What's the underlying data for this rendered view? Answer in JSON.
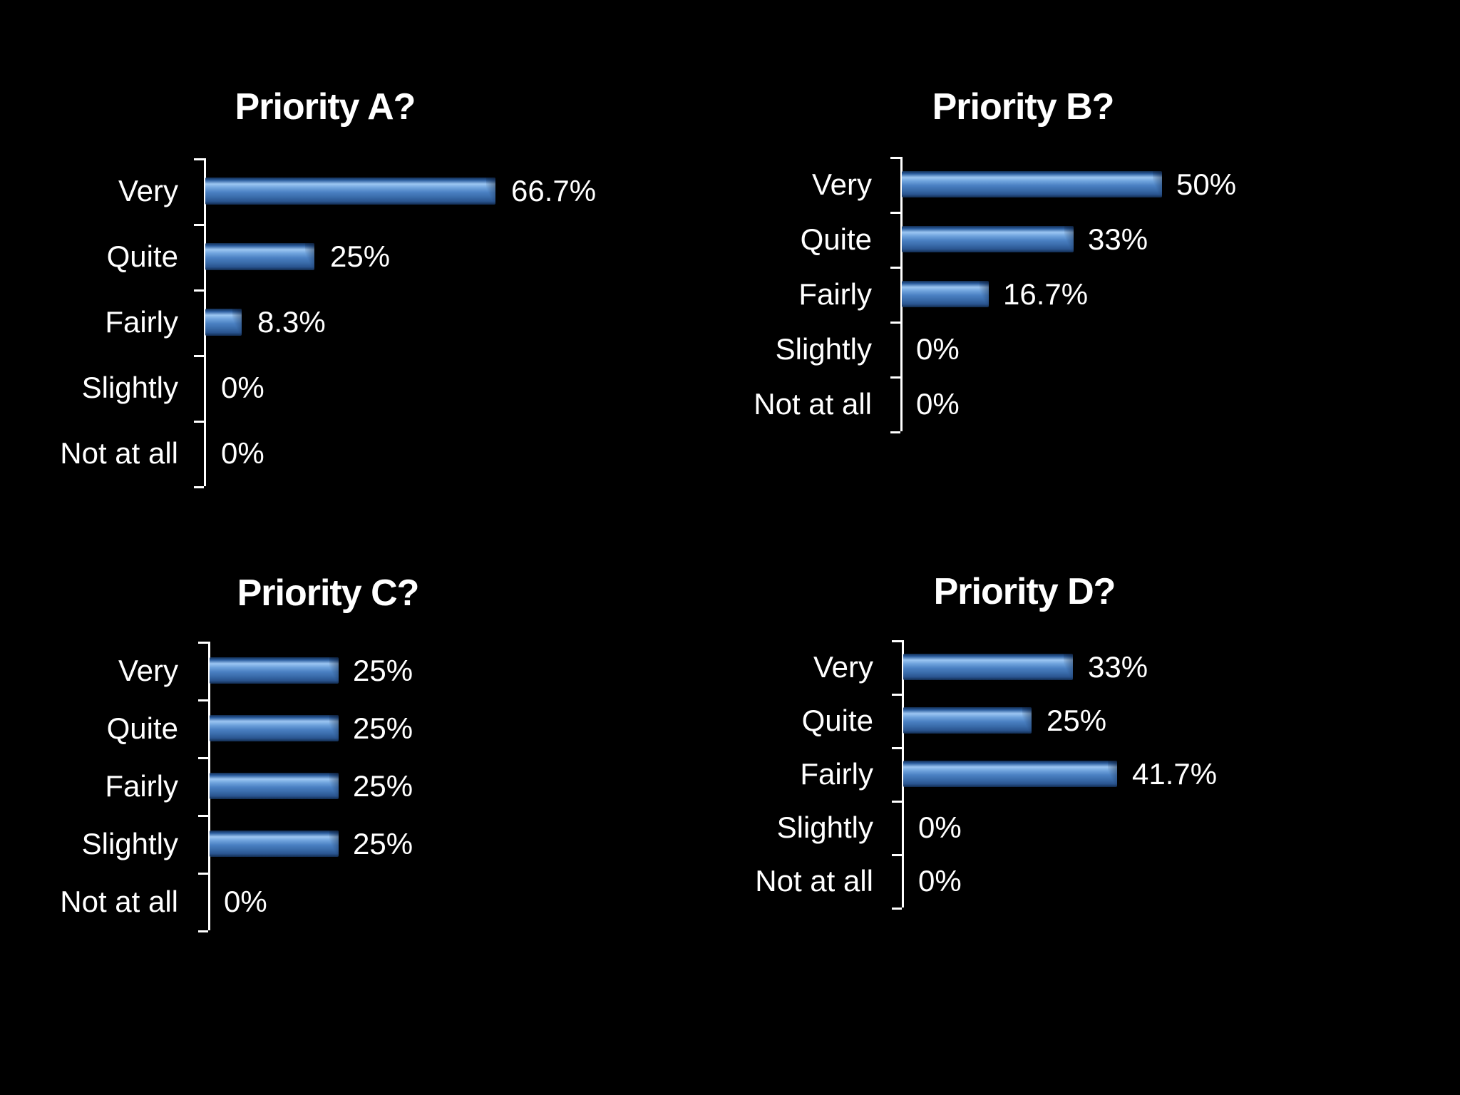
{
  "slide": {
    "background": "#000000",
    "text_color": "#ffffff"
  },
  "colors": {
    "background": "#000000",
    "text": "#ffffff",
    "axis": "#ffffff",
    "bar_main": "#4a80c2",
    "bar_highlight": "#9cc6f2",
    "bar_edge": "#122c50",
    "bar_gradient_stops": [
      "#122c50",
      "#2b5d9e",
      "#9cc6f2",
      "#6fa3dd",
      "#4a80c2",
      "#3a6cab",
      "#2a5590",
      "#122c50"
    ]
  },
  "chart_data": [
    {
      "type": "bar",
      "orientation": "horizontal",
      "title": "Priority A?",
      "categories": [
        "Very",
        "Quite",
        "Fairly",
        "Slightly",
        "Not at all"
      ],
      "values": [
        66.7,
        25,
        8.3,
        0,
        0
      ],
      "value_labels": [
        "66.7%",
        "25%",
        "8.3%",
        "0%",
        "0%"
      ],
      "xlim": [
        0,
        100
      ],
      "grid": false,
      "legend": false,
      "value_labels_position": "end-of-bar"
    },
    {
      "type": "bar",
      "orientation": "horizontal",
      "title": "Priority B?",
      "categories": [
        "Very",
        "Quite",
        "Fairly",
        "Slightly",
        "Not at all"
      ],
      "values": [
        50,
        33,
        16.7,
        0,
        0
      ],
      "value_labels": [
        "50%",
        "33%",
        "16.7%",
        "0%",
        "0%"
      ],
      "xlim": [
        0,
        100
      ],
      "grid": false,
      "legend": false,
      "value_labels_position": "end-of-bar"
    },
    {
      "type": "bar",
      "orientation": "horizontal",
      "title": "Priority C?",
      "categories": [
        "Very",
        "Quite",
        "Fairly",
        "Slightly",
        "Not at all"
      ],
      "values": [
        25,
        25,
        25,
        25,
        0
      ],
      "value_labels": [
        "25%",
        "25%",
        "25%",
        "25%",
        "0%"
      ],
      "xlim": [
        0,
        100
      ],
      "grid": false,
      "legend": false,
      "value_labels_position": "end-of-bar"
    },
    {
      "type": "bar",
      "orientation": "horizontal",
      "title": "Priority D?",
      "categories": [
        "Very",
        "Quite",
        "Fairly",
        "Slightly",
        "Not at all"
      ],
      "values": [
        33,
        25,
        41.7,
        0,
        0
      ],
      "value_labels": [
        "33%",
        "25%",
        "41.7%",
        "0%",
        "0%"
      ],
      "xlim": [
        0,
        100
      ],
      "grid": false,
      "legend": false,
      "value_labels_position": "end-of-bar"
    }
  ]
}
